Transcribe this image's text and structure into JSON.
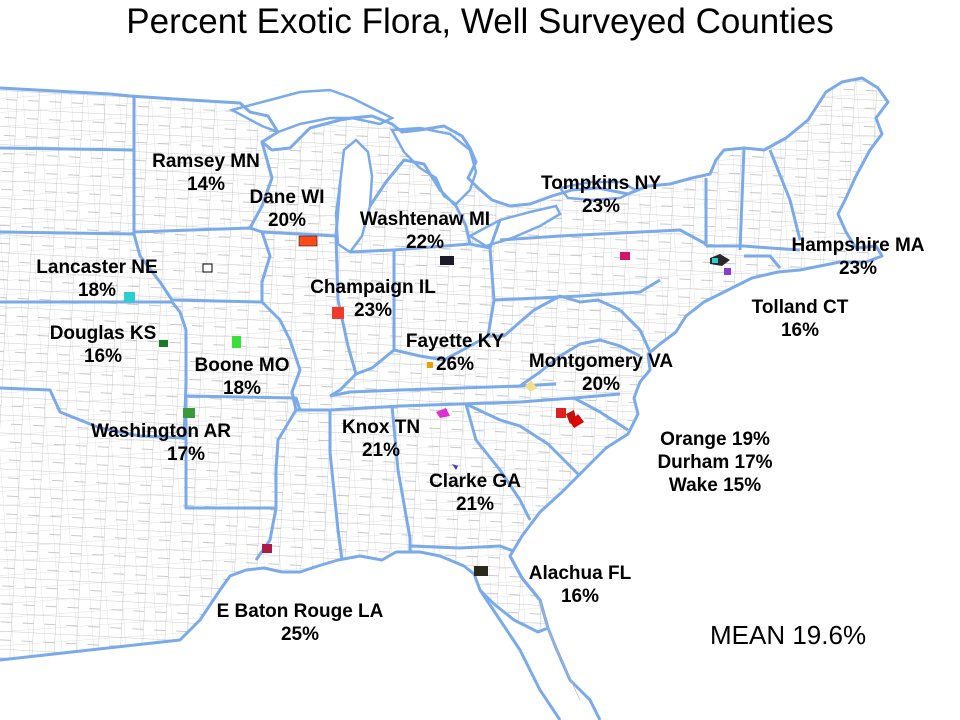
{
  "title": "Percent Exotic Flora, Well Surveyed Counties",
  "mean_label": "MEAN 19.6%",
  "colors": {
    "county_line": "#b4b4b4",
    "state_line": "#7aaaea",
    "background": "#ffffff"
  },
  "counties": [
    {
      "name": "Ramsey MN",
      "percent": "14%"
    },
    {
      "name": "Dane WI",
      "percent": "20%"
    },
    {
      "name": "Washtenaw MI",
      "percent": "22%"
    },
    {
      "name": "Tompkins NY",
      "percent": "23%"
    },
    {
      "name": "Hampshire MA",
      "percent": "23%"
    },
    {
      "name": "Lancaster NE",
      "percent": "18%"
    },
    {
      "name": "Champaign IL",
      "percent": "23%"
    },
    {
      "name": "Tolland CT",
      "percent": "16%"
    },
    {
      "name": "Douglas KS",
      "percent": "16%"
    },
    {
      "name": "Fayette KY",
      "percent": "26%"
    },
    {
      "name": "Boone MO",
      "percent": "18%"
    },
    {
      "name": "Montgomery VA",
      "percent": "20%"
    },
    {
      "name": "Washington AR",
      "percent": "17%"
    },
    {
      "name": "Knox TN",
      "percent": "21%"
    },
    {
      "name": "Clarke GA",
      "percent": "21%"
    },
    {
      "name": "Alachua FL",
      "percent": "16%"
    },
    {
      "name": "E Baton Rouge LA",
      "percent": "25%"
    }
  ],
  "triangle": {
    "line1": "Orange 19%",
    "line2": "Durham 17%",
    "line3": "Wake 15%"
  },
  "markers": {
    "ramsey": "#555555",
    "dane": "#ff4a1a",
    "washtenaw": "#1a1a2a",
    "tompkins": "#d4156a",
    "hampshire": "#2a2a2a",
    "lancaster": "#ffffff",
    "champaign": "#f03a2a",
    "tolland": "#8a3ad0",
    "douglas": "#1a7a2a",
    "fayette": "#eaa000",
    "boone": "#3ae03a",
    "montgomery": "#f0e08a",
    "washington": "#3a9a3a",
    "knox": "#e030d0",
    "clarke": "#3a3ad0",
    "alachua": "#2a2a1a",
    "ebatonrouge": "#aa1a4a",
    "orange": "#e02020",
    "durham": "#c01010",
    "wake": "#e00000",
    "connecticut_cyan": "#2ad0d0"
  }
}
